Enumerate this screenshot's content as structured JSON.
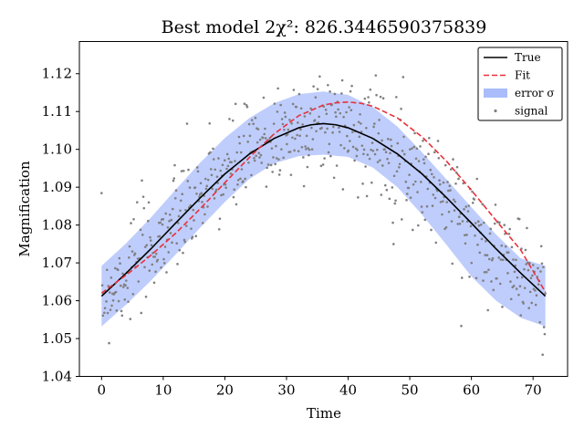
{
  "chart_data": {
    "type": "line",
    "title": "Best model 2χ²: 826.3446590375839",
    "xlabel": "Time",
    "ylabel": "Magnification",
    "xlim": [
      -3.6,
      75.6
    ],
    "ylim": [
      1.04,
      1.1285
    ],
    "xticks": [
      0,
      10,
      20,
      30,
      40,
      50,
      60,
      70
    ],
    "yticks": [
      1.04,
      1.05,
      1.06,
      1.07,
      1.08,
      1.09,
      1.1,
      1.11,
      1.12
    ],
    "grid": false,
    "legend_position": "top-right",
    "series": [
      {
        "name": "True",
        "kind": "line",
        "color": "#000000",
        "style": "solid",
        "x": [
          0,
          4,
          8,
          12,
          16,
          20,
          24,
          28,
          32,
          34,
          36,
          38,
          40,
          44,
          48,
          52,
          56,
          60,
          64,
          68,
          72
        ],
        "y": [
          1.0612,
          1.0673,
          1.0737,
          1.0805,
          1.0872,
          1.0935,
          1.0988,
          1.1029,
          1.1057,
          1.1065,
          1.1068,
          1.1065,
          1.1057,
          1.1029,
          1.0988,
          1.0935,
          1.0872,
          1.0805,
          1.0737,
          1.0673,
          1.0612
        ]
      },
      {
        "name": "Fit",
        "kind": "line",
        "color": "#e8313a",
        "style": "dashed",
        "x": [
          0,
          4,
          8,
          12,
          16,
          20,
          24,
          28,
          32,
          36,
          38,
          40,
          42,
          44,
          48,
          52,
          56,
          60,
          64,
          68,
          72
        ],
        "y": [
          1.062,
          1.0668,
          1.072,
          1.0778,
          1.0843,
          1.0912,
          1.0979,
          1.1041,
          1.1089,
          1.1117,
          1.1123,
          1.1125,
          1.1122,
          1.1114,
          1.1083,
          1.1033,
          1.0968,
          1.0892,
          1.0812,
          1.0734,
          1.0623
        ]
      },
      {
        "name": "error σ",
        "kind": "band",
        "color": "#aabcfb",
        "x": [
          0,
          4,
          8,
          12,
          16,
          20,
          24,
          28,
          32,
          36,
          40,
          44,
          48,
          52,
          56,
          60,
          64,
          68,
          72
        ],
        "lower": [
          1.0532,
          1.059,
          1.0653,
          1.0722,
          1.0793,
          1.0861,
          1.0922,
          1.0963,
          1.0982,
          1.0986,
          1.098,
          1.0952,
          1.09,
          1.0827,
          1.0747,
          1.0664,
          1.06,
          1.0555,
          1.0532
        ],
        "upper": [
          1.0692,
          1.0752,
          1.082,
          1.0893,
          1.0965,
          1.103,
          1.1083,
          1.1122,
          1.1146,
          1.1153,
          1.1144,
          1.1112,
          1.106,
          1.0992,
          1.092,
          1.0847,
          1.0775,
          1.0712,
          1.0692
        ]
      },
      {
        "name": "signal",
        "kind": "scatter",
        "color": "#808080",
        "x_range": [
          0,
          72
        ],
        "count": 650,
        "noise_sd": 0.007
      }
    ]
  }
}
